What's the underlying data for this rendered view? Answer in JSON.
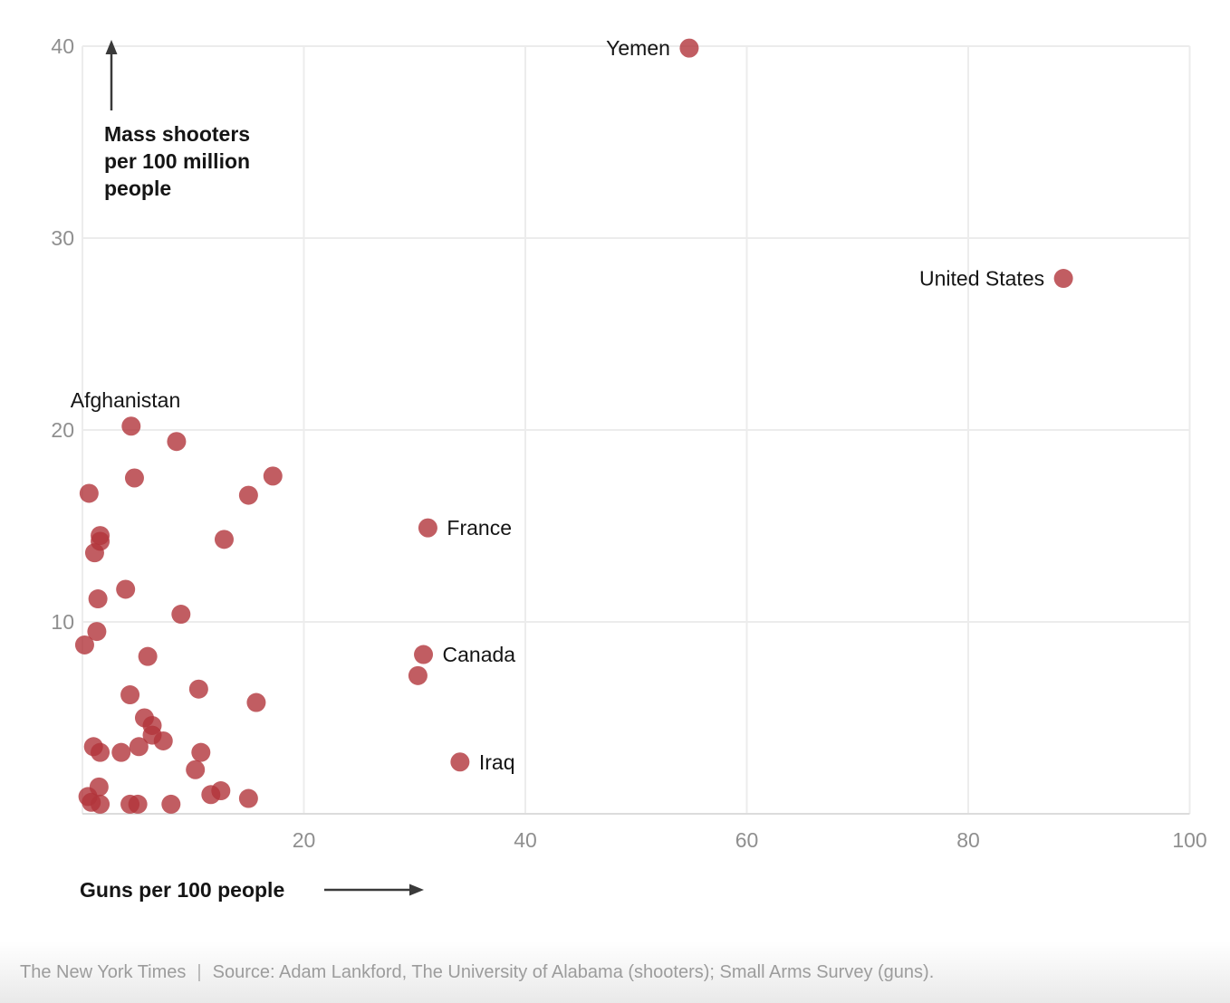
{
  "chart_data": {
    "type": "scatter",
    "x_axis": {
      "label": "Guns per 100 people",
      "ticks": [
        20,
        40,
        60,
        80,
        100
      ],
      "range": [
        0,
        100
      ],
      "grid": true
    },
    "y_axis": {
      "label_lines": [
        "Mass shooters",
        "per 100 million",
        "people"
      ],
      "ticks": [
        40,
        30,
        20,
        10
      ],
      "range": [
        0,
        40
      ],
      "grid": true
    },
    "legend": "none",
    "points": [
      {
        "name": "Yemen",
        "side": "left",
        "guns": 54.8,
        "shooters": 39.9
      },
      {
        "name": "United States",
        "side": "left",
        "guns": 88.6,
        "shooters": 27.9
      },
      {
        "name": "Afghanistan",
        "side": "above",
        "guns": 4.4,
        "shooters": 20.2
      },
      {
        "name": "France",
        "side": "right",
        "guns": 31.2,
        "shooters": 14.9
      },
      {
        "name": "Canada",
        "side": "right",
        "guns": 30.8,
        "shooters": 8.3
      },
      {
        "name": "Iraq",
        "side": "right",
        "guns": 34.1,
        "shooters": 2.7
      },
      {
        "guns": 8.5,
        "shooters": 19.4
      },
      {
        "guns": 4.7,
        "shooters": 17.5
      },
      {
        "guns": 0.6,
        "shooters": 16.7
      },
      {
        "guns": 17.2,
        "shooters": 17.6
      },
      {
        "guns": 15.0,
        "shooters": 16.6
      },
      {
        "guns": 1.6,
        "shooters": 14.5
      },
      {
        "guns": 1.6,
        "shooters": 14.2
      },
      {
        "guns": 12.8,
        "shooters": 14.3
      },
      {
        "guns": 1.1,
        "shooters": 13.6
      },
      {
        "guns": 3.9,
        "shooters": 11.7
      },
      {
        "guns": 1.4,
        "shooters": 11.2
      },
      {
        "guns": 8.9,
        "shooters": 10.4
      },
      {
        "guns": 1.3,
        "shooters": 9.5
      },
      {
        "guns": 0.2,
        "shooters": 8.8
      },
      {
        "guns": 5.9,
        "shooters": 8.2
      },
      {
        "guns": 30.3,
        "shooters": 7.2
      },
      {
        "guns": 4.3,
        "shooters": 6.2
      },
      {
        "guns": 10.5,
        "shooters": 6.5
      },
      {
        "guns": 15.7,
        "shooters": 5.8
      },
      {
        "guns": 5.6,
        "shooters": 5.0
      },
      {
        "guns": 6.3,
        "shooters": 4.6
      },
      {
        "guns": 6.3,
        "shooters": 4.1
      },
      {
        "guns": 7.3,
        "shooters": 3.8
      },
      {
        "guns": 1.0,
        "shooters": 3.5
      },
      {
        "guns": 1.6,
        "shooters": 3.2
      },
      {
        "guns": 3.5,
        "shooters": 3.2
      },
      {
        "guns": 5.1,
        "shooters": 3.5
      },
      {
        "guns": 10.7,
        "shooters": 3.2
      },
      {
        "guns": 10.2,
        "shooters": 2.3
      },
      {
        "guns": 1.5,
        "shooters": 1.4
      },
      {
        "guns": 0.5,
        "shooters": 0.9
      },
      {
        "guns": 0.8,
        "shooters": 0.6
      },
      {
        "guns": 1.6,
        "shooters": 0.5
      },
      {
        "guns": 4.3,
        "shooters": 0.5
      },
      {
        "guns": 5.0,
        "shooters": 0.5
      },
      {
        "guns": 8.0,
        "shooters": 0.5
      },
      {
        "guns": 11.6,
        "shooters": 1.0
      },
      {
        "guns": 12.5,
        "shooters": 1.2
      },
      {
        "guns": 15.0,
        "shooters": 0.8
      }
    ]
  },
  "colors": {
    "dot_fill": "rgba(177,53,59,0.8)",
    "grid": "#ececec",
    "axis_line": "#dcdcdc",
    "tick_text": "#8f8f8f",
    "label_text": "#151515",
    "arrow": "#3a3a3a"
  },
  "footer": {
    "credit": "The New York Times",
    "divider": "|",
    "source": "Source: Adam Lankford, The University of Alabama (shooters); Small Arms Survey (guns)."
  }
}
